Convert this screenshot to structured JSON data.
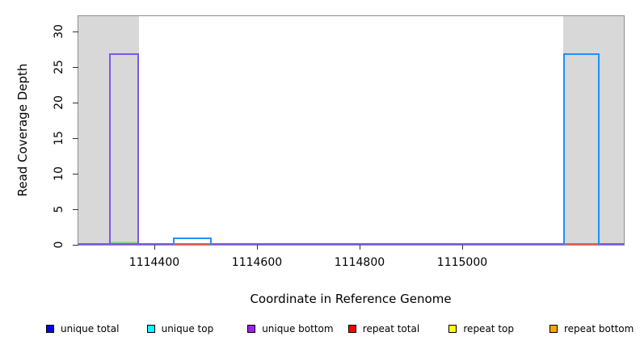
{
  "chart_data": {
    "type": "bar",
    "title": "",
    "xlabel": "Coordinate in Reference Genome",
    "ylabel": "Read Coverage Depth",
    "xlim": [
      1114252,
      1115315
    ],
    "ylim": [
      0,
      32.2
    ],
    "x_ticks": [
      1114400,
      1114600,
      1114800,
      1115000
    ],
    "y_ticks": [
      0,
      5,
      10,
      15,
      20,
      25,
      30
    ],
    "grid": false,
    "legend_position": "bottom",
    "frame_color": "#8f8f8f",
    "shaded_region_color": "#d8d8d8",
    "shaded_regions": [
      {
        "name": "masked-region-left",
        "x0": 1114252,
        "x1": 1114370
      },
      {
        "name": "masked-region-right",
        "x0": 1115197,
        "x1": 1115315
      }
    ],
    "bars": [
      {
        "series": "unique bottom",
        "x0": 1114312,
        "x1": 1114370,
        "height": 27,
        "color": "#7d55ee"
      },
      {
        "series": "unique total",
        "x0": 1114436,
        "x1": 1114512,
        "height": 1,
        "color": "#1e90ff"
      },
      {
        "series": "unique total",
        "x0": 1115197,
        "x1": 1115268,
        "height": 27,
        "color": "#1e90ff"
      }
    ],
    "baseline_segments": [
      {
        "name": "purple-zero-line",
        "series": "unique bottom",
        "x0": 1114252,
        "x1": 1115315,
        "y": 0,
        "color": "#7d55ee"
      },
      {
        "name": "green-zero-line",
        "series": "unique top",
        "x0": 1114312,
        "x1": 1114370,
        "y": 0.25,
        "color": "#8fdc8f"
      },
      {
        "name": "red-zero-line",
        "series": "repeat total",
        "x0": 1114436,
        "x1": 1114512,
        "y": 0,
        "color": "#ee5555"
      },
      {
        "name": "red-zero-line",
        "series": "repeat total",
        "x0": 1115197,
        "x1": 1115268,
        "y": 0,
        "color": "#ee5555"
      }
    ],
    "legend": [
      {
        "label": "unique total",
        "color": "#0000ff"
      },
      {
        "label": "unique top",
        "color": "#00ffff"
      },
      {
        "label": "unique bottom",
        "color": "#a020f0"
      },
      {
        "label": "repeat total",
        "color": "#ff0000"
      },
      {
        "label": "repeat top",
        "color": "#ffff00"
      },
      {
        "label": "repeat bottom",
        "color": "#ffa500"
      }
    ]
  }
}
